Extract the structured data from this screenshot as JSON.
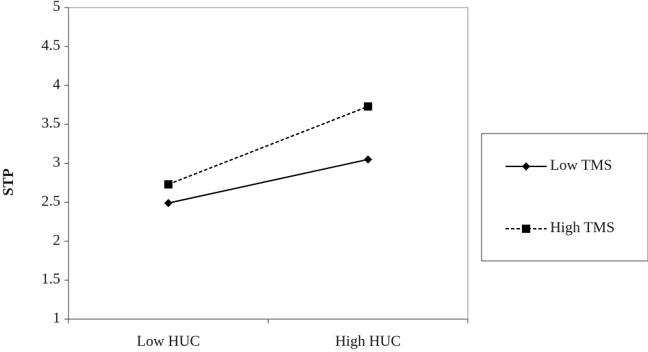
{
  "chart_data": {
    "type": "line",
    "ylabel": "STP",
    "categories": [
      "Low HUC",
      "High HUC"
    ],
    "series": [
      {
        "name": "Low TMS",
        "color": "#000000",
        "line_style": "solid",
        "marker": "diamond",
        "values": [
          2.49,
          3.05
        ]
      },
      {
        "name": "High TMS",
        "color": "#000000",
        "line_style": "dashed",
        "marker": "square",
        "values": [
          2.73,
          3.73
        ]
      }
    ],
    "ylim": [
      1,
      5
    ],
    "yticks": [
      1,
      1.5,
      2,
      2.5,
      3,
      3.5,
      4,
      4.5,
      5
    ],
    "grid": false,
    "legend": "right"
  }
}
